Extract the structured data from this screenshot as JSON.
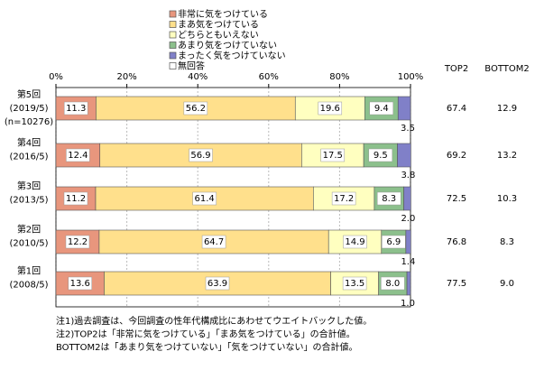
{
  "chart_data": {
    "type": "stacked-bar-horizontal",
    "categories": [
      [
        "第5回",
        "(2019/5)",
        "(n=10276)"
      ],
      [
        "第4回",
        "(2016/5)"
      ],
      [
        "第3回",
        "(2013/5)"
      ],
      [
        "第2回",
        "(2010/5)"
      ],
      [
        "第1回",
        "(2008/5)"
      ]
    ],
    "series": [
      {
        "name": "非常に気をつけている",
        "color": "#e8967d",
        "values": [
          11.3,
          12.4,
          11.2,
          12.2,
          13.6
        ],
        "value_labels": [
          "11.3",
          "12.4",
          "11.2",
          "12.2",
          "13.6"
        ]
      },
      {
        "name": "まあ気をつけている",
        "color": "#ffe08c",
        "values": [
          56.2,
          56.9,
          61.4,
          64.7,
          63.9
        ],
        "value_labels": [
          "56.2",
          "56.9",
          "61.4",
          "64.7",
          "63.9"
        ]
      },
      {
        "name": "どちらともいえない",
        "color": "#ffffc0",
        "values": [
          19.6,
          17.5,
          17.2,
          14.9,
          13.5
        ],
        "value_labels": [
          "19.6",
          "17.5",
          "17.2",
          "14.9",
          "13.5"
        ]
      },
      {
        "name": "あまり気をつけていない",
        "color": "#8cc08c",
        "values": [
          9.4,
          9.5,
          8.3,
          6.9,
          8.0
        ],
        "value_labels": [
          "9.4",
          "9.5",
          "8.3",
          "6.9",
          "8.0"
        ]
      },
      {
        "name": "まったく気をつけていない",
        "color": "#8080c8",
        "values": [
          3.5,
          3.8,
          2.0,
          1.4,
          1.0
        ],
        "value_labels": [
          "3.5",
          "3.8",
          "2.0",
          "1.4",
          "1.0"
        ]
      },
      {
        "name": "無回答",
        "color": "#ffffff",
        "values": [
          0,
          0,
          0,
          0,
          0
        ]
      }
    ],
    "xlim": [
      0,
      100
    ],
    "xticks": [
      {
        "value": 0,
        "label": "0%"
      },
      {
        "value": 20,
        "label": "20%"
      },
      {
        "value": 40,
        "label": "40%"
      },
      {
        "value": 60,
        "label": "60%"
      },
      {
        "value": 80,
        "label": "80%"
      },
      {
        "value": 100,
        "label": "100%"
      }
    ],
    "grid": true,
    "top2": {
      "header": "TOP2",
      "values": [
        67.4,
        69.2,
        72.5,
        76.8,
        77.5
      ]
    },
    "bottom2": {
      "header": "BOTTOM2",
      "values": [
        12.9,
        13.2,
        10.3,
        8.3,
        9.0
      ],
      "value_labels": [
        "12.9",
        "13.2",
        "10.3",
        "8.3",
        "9.0"
      ]
    },
    "notes": [
      "注1)過去調査は、今回調査の性年代構成比にあわせてウエイトバックした値。",
      "注2)TOP2は「非常に気をつけている」「まあ気をつけている」の合計値。",
      "BOTTOM2は「あまり気をつけていない」「気をつけていない」の合計値。"
    ]
  }
}
